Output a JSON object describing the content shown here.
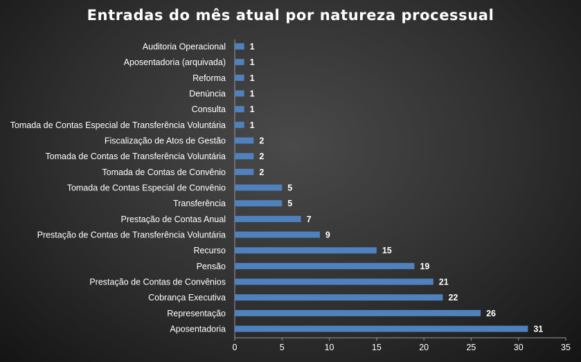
{
  "chart_data": {
    "type": "bar",
    "orientation": "horizontal",
    "title": "Entradas do mês atual por natureza processual",
    "categories": [
      "Auditoria Operacional",
      "Aposentadoria (arquivada)",
      "Reforma",
      "Denúncia",
      "Consulta",
      "Tomada de Contas Especial de Transferência Voluntária",
      "Fiscalização de Atos de Gestão",
      "Tomada de Contas de Transferência Voluntária",
      "Tomada de Contas de Convênio",
      "Tomada de Contas Especial de Convênio",
      "Transferência",
      "Prestação de Contas Anual",
      "Prestação de Contas de Transferência Voluntária",
      "Recurso",
      "Pensão",
      "Prestação de Contas de Convênios",
      "Cobrança Executiva",
      "Representação",
      "Aposentadoria"
    ],
    "values": [
      1,
      1,
      1,
      1,
      1,
      1,
      2,
      2,
      2,
      5,
      5,
      7,
      9,
      15,
      19,
      21,
      22,
      26,
      31
    ],
    "xlim": [
      0,
      35
    ],
    "xticks": [
      "0",
      "5",
      "10",
      "15",
      "20",
      "25",
      "30",
      "35"
    ],
    "bar_color": "#4f81bd",
    "grid": false,
    "legend": "none",
    "data_labels": true
  }
}
